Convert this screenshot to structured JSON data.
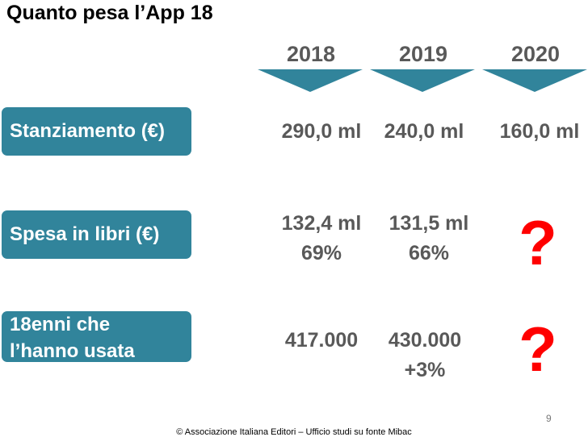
{
  "title": "Quanto pesa l’App 18",
  "years": [
    "2018",
    "2019",
    "2020"
  ],
  "rows": [
    {
      "label": "Stanziamento (€)",
      "values": [
        [
          "290,0 ml"
        ],
        [
          "240,0 ml"
        ],
        [
          "160,0 ml"
        ]
      ]
    },
    {
      "label": "Spesa in libri (€)",
      "values": [
        [
          "132,4 ml",
          "69%"
        ],
        [
          "131,5 ml",
          "66%"
        ],
        [
          "?"
        ]
      ]
    },
    {
      "label_lines": [
        "18enni che",
        "l’hanno usata"
      ],
      "values": [
        [
          "417.000"
        ],
        [
          "430.000",
          "+3%"
        ],
        [
          "?"
        ]
      ]
    }
  ],
  "page_number": "9",
  "footer": "© Associazione Italiana Editori – Ufficio studi su fonte Mibac",
  "colors": {
    "accent": "#31849b",
    "question": "#ff0000",
    "value_text": "#595959"
  }
}
